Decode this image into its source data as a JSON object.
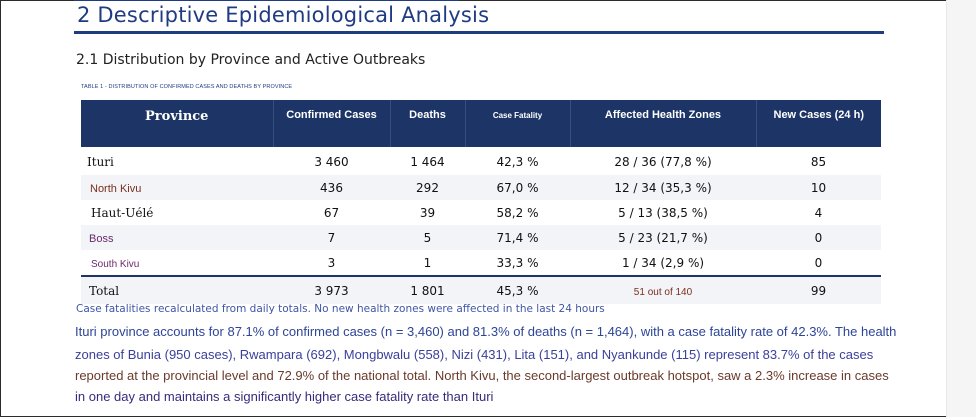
{
  "section_title": "2 Descriptive Epidemiological Analysis",
  "subsection_title": "2.1 Distribution by Province and Active Outbreaks",
  "table_caption": "TABLE 1 - DISTRIBUTION OF CONFIRMED CASES AND DEATHS BY PROVINCE",
  "table": {
    "headers": [
      "Province",
      "Confirmed Cases",
      "Deaths",
      "Case Fatality",
      "Affected Health Zones",
      "New Cases (24 h)"
    ],
    "rows": [
      {
        "province": "Ituri",
        "confirmed": "3 460",
        "deaths": "1 464",
        "cfr": "42,3 %",
        "zones": "28 / 36 (77,8 %)",
        "new": "85"
      },
      {
        "province": "North Kivu",
        "confirmed": "436",
        "deaths": "292",
        "cfr": "67,0 %",
        "zones": "12 / 34 (35,3 %)",
        "new": "10"
      },
      {
        "province": "Haut-Uélé",
        "confirmed": "67",
        "deaths": "39",
        "cfr": "58,2 %",
        "zones": "5 / 13 (38,5 %)",
        "new": "4"
      },
      {
        "province": "Boss",
        "confirmed": "7",
        "deaths": "5",
        "cfr": "71,4 %",
        "zones": "5 / 23 (21,7 %)",
        "new": "0"
      },
      {
        "province": "South Kivu",
        "confirmed": "3",
        "deaths": "1",
        "cfr": "33,3 %",
        "zones": "1 / 34 (2,9 %)",
        "new": "0"
      }
    ],
    "total": {
      "province": "Total",
      "confirmed": "3 973",
      "deaths": "1 801",
      "cfr": "45,3 %",
      "zones": "51 out of 140",
      "new": "99"
    }
  },
  "note": "Case fatalities recalculated from daily totals. No new health zones were affected in the last 24 hours",
  "paragraph": [
    "Ituri province accounts for 87.1% of confirmed cases (n = 3,460) and 81.3% of deaths (n = 1,464), with a case fatality rate of 42.3%. The health",
    "zones of Bunia (950 cases), Rwampara (692), Mongbwalu (558), Nizi (431), Lita (151), and Nyankunde (115) represent 83.7% of the cases",
    "reported at the provincial level and 72.9% of the national total. North Kivu, the second-largest outbreak hotspot, saw a 2.3% increase in cases",
    "in one day and maintains a significantly higher case fatality rate than Ituri"
  ],
  "colors": {
    "header_bg": "#1c3566",
    "title": "#1f3b82",
    "note": "#3f55a6"
  }
}
